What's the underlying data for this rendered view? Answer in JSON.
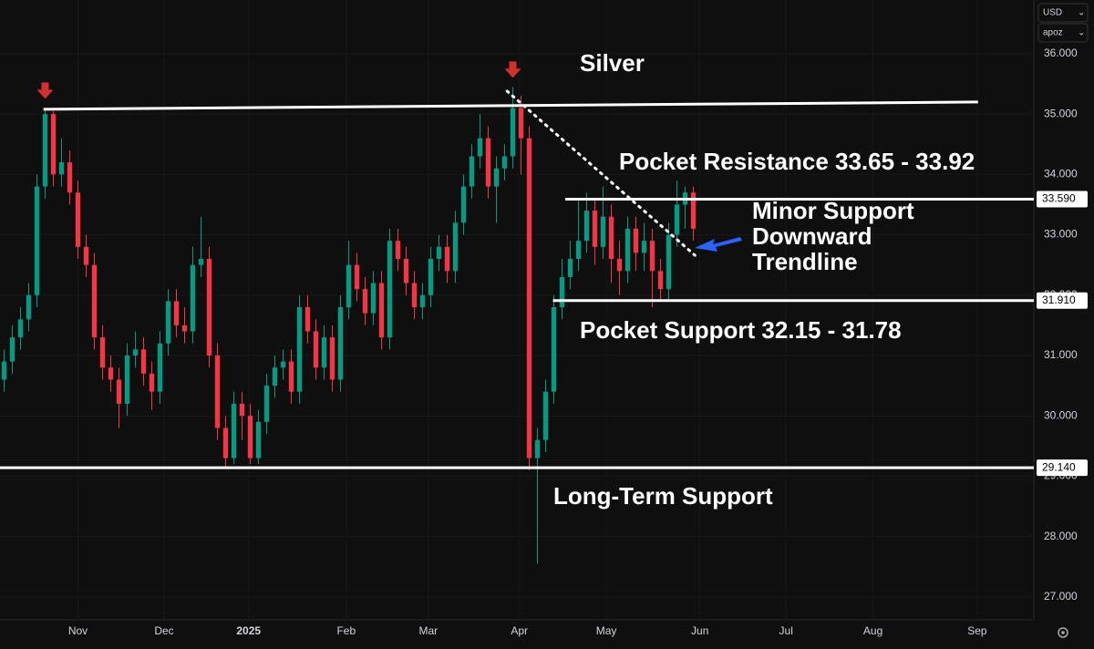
{
  "chart_data": {
    "type": "candlestick",
    "up_color": "#089981",
    "down_color": "#f23645",
    "open": [
      30.6,
      30.9,
      31.3,
      31.6,
      32.0,
      33.8,
      35.0,
      34.0,
      34.2,
      33.7,
      32.8,
      32.5,
      31.3,
      30.8,
      30.6,
      30.2,
      31.0,
      31.1,
      30.7,
      30.4,
      31.2,
      31.9,
      31.5,
      31.4,
      32.5,
      32.6,
      31.0,
      29.8,
      29.3,
      30.2,
      30.0,
      29.3,
      29.9,
      30.5,
      30.8,
      30.9,
      30.4,
      31.8,
      31.4,
      30.8,
      31.3,
      30.6,
      31.8,
      32.5,
      32.1,
      31.7,
      32.2,
      31.3,
      32.9,
      32.6,
      32.2,
      31.8,
      32.0,
      32.6,
      32.8,
      32.4,
      33.2,
      33.8,
      34.3,
      34.6,
      33.8,
      34.1,
      34.3,
      35.1,
      34.6,
      29.3,
      29.6,
      30.4,
      31.8,
      32.3,
      32.6,
      32.9,
      33.4,
      32.8,
      33.3,
      32.6,
      32.4,
      33.1,
      32.7,
      32.9,
      32.4,
      32.1,
      33.0,
      33.5,
      33.7
    ],
    "high": [
      31.1,
      31.5,
      31.8,
      32.2,
      34.0,
      35.1,
      35.05,
      34.6,
      34.4,
      33.9,
      33.0,
      32.7,
      31.5,
      31.0,
      30.8,
      31.2,
      31.4,
      31.3,
      30.9,
      31.4,
      32.1,
      32.1,
      31.8,
      32.8,
      33.3,
      32.8,
      31.2,
      30.0,
      30.4,
      30.4,
      30.2,
      30.1,
      30.7,
      31.0,
      31.1,
      31.1,
      32.0,
      32.0,
      31.6,
      31.5,
      31.5,
      32.0,
      32.9,
      32.7,
      32.3,
      32.4,
      32.4,
      33.1,
      33.1,
      32.8,
      32.4,
      32.2,
      32.8,
      33.0,
      33.0,
      33.4,
      34.0,
      34.5,
      35.0,
      34.8,
      34.3,
      34.5,
      35.45,
      35.3,
      34.8,
      29.8,
      30.6,
      32.0,
      32.6,
      32.9,
      33.6,
      33.7,
      33.6,
      33.8,
      33.5,
      32.9,
      33.3,
      33.3,
      33.2,
      33.1,
      32.6,
      33.2,
      33.9,
      33.8,
      33.8
    ],
    "low": [
      30.4,
      30.7,
      31.1,
      31.4,
      31.8,
      33.6,
      33.8,
      33.8,
      33.5,
      32.6,
      32.3,
      31.1,
      30.6,
      30.4,
      29.8,
      30.0,
      30.8,
      30.5,
      30.1,
      30.2,
      31.0,
      31.3,
      31.2,
      31.2,
      32.3,
      30.8,
      29.6,
      29.15,
      29.2,
      29.6,
      29.2,
      29.2,
      29.7,
      30.3,
      30.6,
      30.2,
      30.2,
      31.2,
      30.6,
      30.6,
      30.4,
      30.4,
      31.6,
      31.9,
      31.5,
      31.5,
      31.1,
      31.1,
      32.4,
      32.0,
      31.6,
      31.6,
      31.8,
      32.4,
      32.2,
      32.2,
      33.0,
      33.6,
      34.1,
      33.6,
      33.2,
      33.9,
      34.1,
      34.0,
      29.1,
      27.55,
      29.4,
      30.2,
      31.6,
      32.1,
      32.4,
      32.7,
      32.5,
      32.6,
      32.2,
      32.0,
      32.2,
      32.4,
      32.4,
      31.8,
      31.9,
      31.9,
      32.8,
      33.1,
      32.9
    ],
    "close": [
      30.9,
      31.3,
      31.6,
      32.0,
      33.8,
      35.0,
      34.0,
      34.2,
      33.7,
      32.8,
      32.5,
      31.3,
      30.8,
      30.6,
      30.2,
      31.0,
      31.1,
      30.7,
      30.4,
      31.2,
      31.9,
      31.5,
      31.4,
      32.5,
      32.6,
      31.0,
      29.8,
      29.3,
      30.2,
      30.0,
      29.3,
      29.9,
      30.5,
      30.8,
      30.9,
      30.4,
      31.8,
      31.4,
      30.8,
      31.3,
      30.6,
      31.8,
      32.5,
      32.1,
      31.7,
      32.2,
      31.3,
      32.9,
      32.6,
      32.2,
      31.8,
      32.0,
      32.6,
      32.8,
      32.4,
      33.2,
      33.8,
      34.3,
      34.6,
      33.8,
      34.1,
      34.3,
      35.1,
      34.6,
      29.3,
      29.6,
      30.4,
      31.8,
      32.3,
      32.6,
      32.9,
      33.4,
      32.8,
      33.3,
      32.6,
      32.4,
      33.1,
      32.7,
      32.9,
      32.4,
      32.1,
      33.0,
      33.5,
      33.7,
      33.1
    ],
    "xlim": [
      -0.5,
      125.5
    ],
    "xticks": [
      {
        "value": 9,
        "label": "Nov"
      },
      {
        "value": 19.5,
        "label": "Dec"
      },
      {
        "value": 29.8,
        "label": "2025"
      },
      {
        "value": 41.7,
        "label": "Feb"
      },
      {
        "value": 51.7,
        "label": "Mar"
      },
      {
        "value": 62.8,
        "label": "Apr"
      },
      {
        "value": 73.4,
        "label": "May"
      },
      {
        "value": 84.8,
        "label": "Jun"
      },
      {
        "value": 95.3,
        "label": "Jul"
      },
      {
        "value": 105.9,
        "label": "Aug"
      },
      {
        "value": 118.6,
        "label": "Sep"
      }
    ],
    "ylim": [
      26.62,
      36.89
    ],
    "yticks": [
      {
        "value": 27,
        "label": "27.000"
      },
      {
        "value": 28,
        "label": "28.000"
      },
      {
        "value": 29,
        "label": "29.000"
      },
      {
        "value": 30,
        "label": "30.000"
      },
      {
        "value": 31,
        "label": "31.000"
      },
      {
        "value": 32,
        "label": "32.000"
      },
      {
        "value": 33,
        "label": "33.000"
      },
      {
        "value": 34,
        "label": "34.000"
      },
      {
        "value": 35,
        "label": "35.000"
      },
      {
        "value": 36,
        "label": "36.000"
      }
    ],
    "levels": [
      {
        "value": 33.59,
        "label": "33.590",
        "from": 68.4
      },
      {
        "value": 31.91,
        "label": "31.910",
        "from": 66.9
      },
      {
        "value": 29.14,
        "label": "29.140",
        "from": -0.5
      }
    ],
    "trendlines": [
      {
        "x": [
          4.8,
          118.7
        ],
        "y": [
          35.08,
          35.2
        ],
        "style": "solid"
      },
      {
        "x": [
          61.3,
          84.2
        ],
        "y": [
          35.38,
          32.66
        ],
        "style": "dotted"
      }
    ],
    "peak_markers": {
      "color": "#d32f2f",
      "points": [
        {
          "x": 5,
          "y": 35.1
        },
        {
          "x": 62,
          "y": 35.45
        }
      ]
    },
    "annotations": [
      {
        "text": "Silver"
      },
      {
        "text": "Pocket Resistance 33.65 - 33.92"
      },
      {
        "lines": [
          "Minor Support",
          "Downward",
          "Trendline"
        ]
      },
      {
        "text": "Pocket Support 32.15 - 31.78"
      },
      {
        "text": "Long-Term Support"
      }
    ]
  },
  "toolbar": {
    "currency": "USD",
    "user": "apoz"
  }
}
